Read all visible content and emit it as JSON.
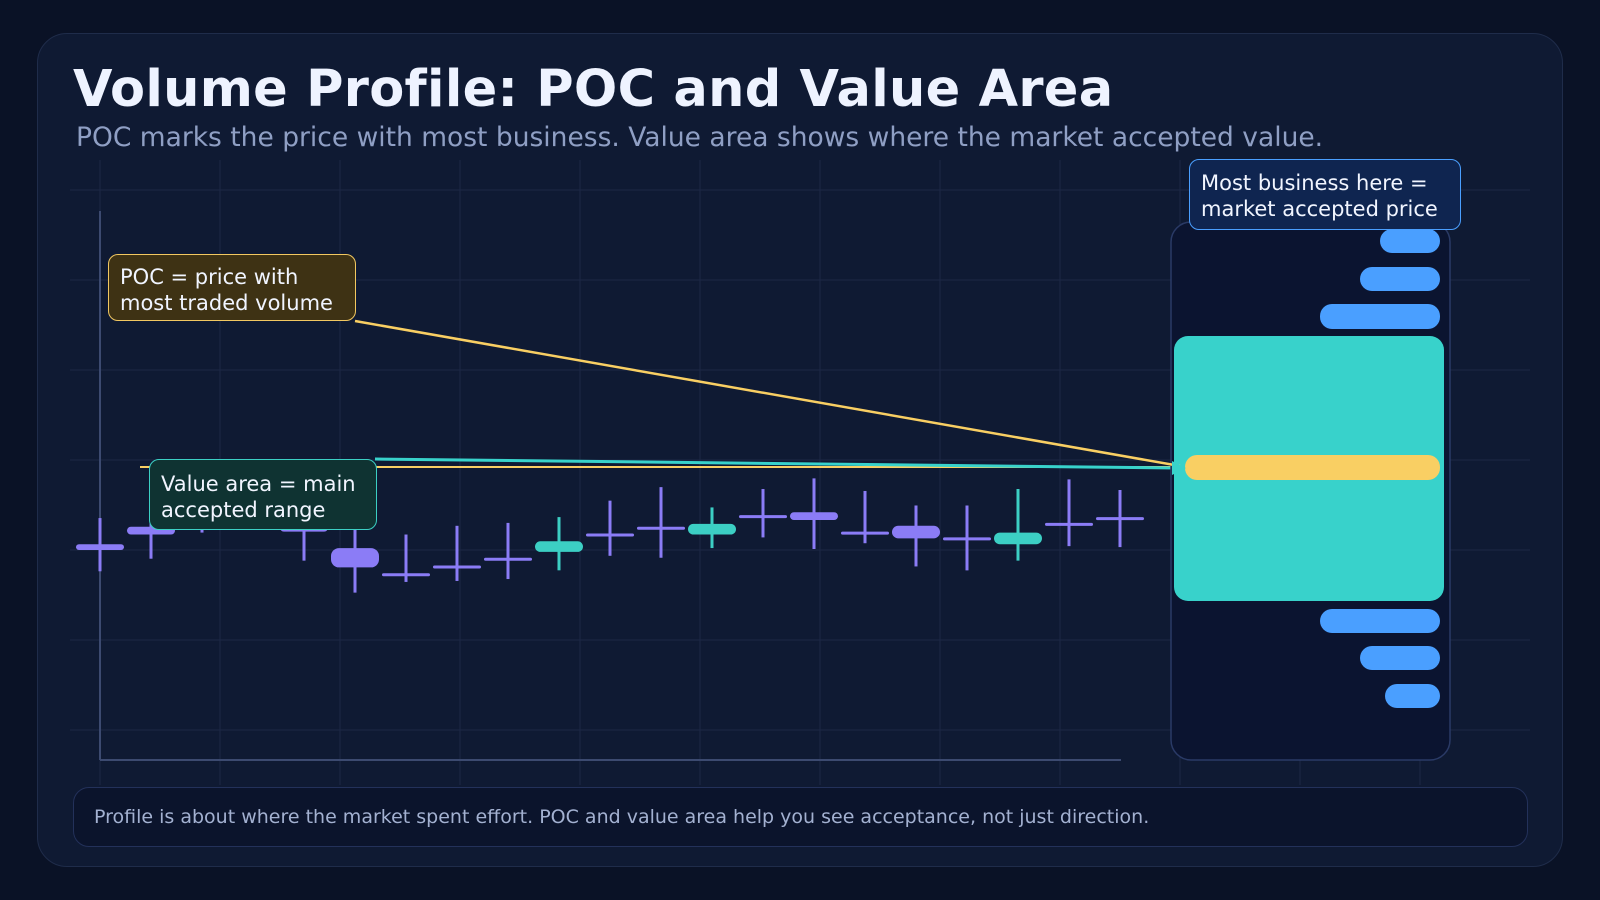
{
  "title": "Volume Profile: POC and Value Area",
  "subtitle": "POC marks the price with most business. Value area shows where the market accepted value.",
  "callouts": {
    "poc_line1": "POC = price with",
    "poc_line2": "most traded volume",
    "value_area_line1": "Value area = main",
    "value_area_line2": "accepted range",
    "business_line1": "Most business here =",
    "business_line2": "market accepted price"
  },
  "footer": "Profile is about where the market spent effort. POC and value area help you see acceptance, not just direction.",
  "colors": {
    "background": "#0a1226",
    "panel": "#0f1a33",
    "bull": "#3ccfc4",
    "bear": "#8b7cf6",
    "profile_bar": "#4a9fff",
    "value_area": "#38d2cb",
    "poc": "#f9cf63"
  },
  "chart_data": [
    {
      "type": "candlestick",
      "candles": [
        {
          "open": 52.3,
          "close": 51.7,
          "high": 55.0,
          "low": 49.5
        },
        {
          "open": 54.1,
          "close": 53.3,
          "high": 57.0,
          "low": 50.8
        },
        {
          "open": 56.5,
          "close": 55.7,
          "high": 59.0,
          "low": 53.5
        },
        {
          "open": 57.4,
          "close": 56.6,
          "high": 59.0,
          "low": 54.0
        },
        {
          "open": 54.4,
          "close": 53.6,
          "high": 56.5,
          "low": 50.6
        },
        {
          "open": 51.9,
          "close": 49.9,
          "high": 54.3,
          "low": 47.3
        },
        {
          "open": 49.3,
          "close": 49.1,
          "high": 53.3,
          "low": 48.4
        },
        {
          "open": 50.1,
          "close": 49.9,
          "high": 54.2,
          "low": 48.5
        },
        {
          "open": 50.9,
          "close": 50.7,
          "high": 54.5,
          "low": 48.7
        },
        {
          "open": 51.5,
          "close": 52.6,
          "high": 55.1,
          "low": 49.6
        },
        {
          "open": 53.4,
          "close": 53.2,
          "high": 56.8,
          "low": 51.1
        },
        {
          "open": 54.1,
          "close": 53.9,
          "high": 58.2,
          "low": 50.9
        },
        {
          "open": 53.3,
          "close": 54.4,
          "high": 56.1,
          "low": 51.9
        },
        {
          "open": 55.3,
          "close": 55.1,
          "high": 58.0,
          "low": 53.0
        },
        {
          "open": 55.6,
          "close": 54.8,
          "high": 59.1,
          "low": 51.8
        },
        {
          "open": 53.6,
          "close": 53.4,
          "high": 57.8,
          "low": 52.4
        },
        {
          "open": 54.2,
          "close": 52.9,
          "high": 56.3,
          "low": 50.0
        },
        {
          "open": 53.0,
          "close": 52.8,
          "high": 56.3,
          "low": 49.6
        },
        {
          "open": 52.3,
          "close": 53.5,
          "high": 58.0,
          "low": 50.6
        },
        {
          "open": 54.5,
          "close": 54.3,
          "high": 59.0,
          "low": 52.1
        },
        {
          "open": 55.1,
          "close": 54.9,
          "high": 57.9,
          "low": 52.0
        }
      ],
      "ylim": [
        30,
        92
      ],
      "poc_price": 58.0
    },
    {
      "type": "bar",
      "orientation": "horizontal",
      "categories": [
        "87",
        "83",
        "79",
        "50-74",
        "62",
        "44",
        "40",
        "36"
      ],
      "values": [
        6,
        8,
        12,
        27,
        25.5,
        12,
        8,
        5.5
      ],
      "roles": [
        "profile",
        "profile",
        "profile",
        "value-area",
        "poc",
        "profile",
        "profile",
        "profile"
      ]
    }
  ]
}
